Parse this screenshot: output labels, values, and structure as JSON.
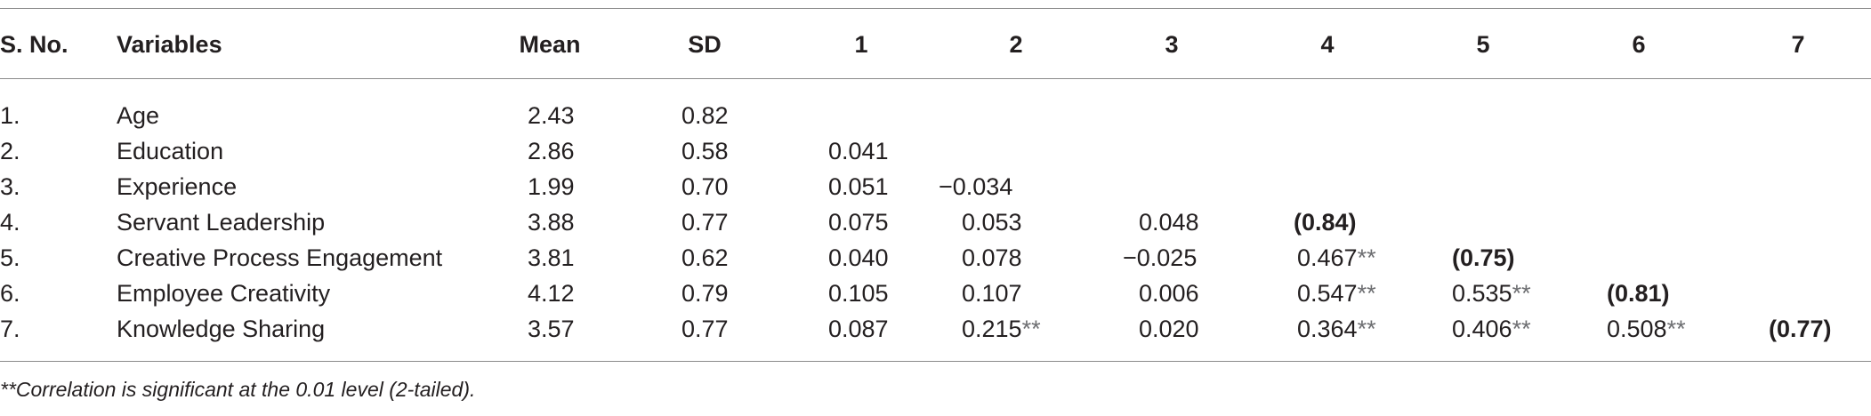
{
  "table": {
    "headers": [
      "S. No.",
      "Variables",
      "Mean",
      "SD",
      "1",
      "2",
      "3",
      "4",
      "5",
      "6",
      "7"
    ],
    "rows": [
      {
        "no": "1.",
        "variable": "Age",
        "mean": "2.43",
        "sd": "0.82",
        "c": [
          "",
          "",
          "",
          "",
          "",
          "",
          ""
        ]
      },
      {
        "no": "2.",
        "variable": "Education",
        "mean": "2.86",
        "sd": "0.58",
        "c": [
          "0.041",
          "",
          "",
          "",
          "",
          "",
          ""
        ]
      },
      {
        "no": "3.",
        "variable": "Experience",
        "mean": "1.99",
        "sd": "0.70",
        "c": [
          "0.051",
          "−0.034",
          "",
          "",
          "",
          "",
          ""
        ]
      },
      {
        "no": "4.",
        "variable": "Servant Leadership",
        "mean": "3.88",
        "sd": "0.77",
        "c": [
          "0.075",
          "0.053",
          "0.048",
          "(0.84)",
          "",
          "",
          ""
        ]
      },
      {
        "no": "5.",
        "variable": "Creative Process Engagement",
        "mean": "3.81",
        "sd": "0.62",
        "c": [
          "0.040",
          "0.078",
          "−0.025",
          "0.467**",
          "(0.75)",
          "",
          ""
        ]
      },
      {
        "no": "6.",
        "variable": "Employee Creativity",
        "mean": "4.12",
        "sd": "0.79",
        "c": [
          "0.105",
          "0.107",
          "0.006",
          "0.547**",
          "0.535**",
          "(0.81)",
          ""
        ]
      },
      {
        "no": "7.",
        "variable": "Knowledge Sharing",
        "mean": "3.57",
        "sd": "0.77",
        "c": [
          "0.087",
          "0.215**",
          "0.020",
          "0.364**",
          "0.406**",
          "0.508**",
          "(0.77)"
        ]
      }
    ]
  },
  "footnote": "**Correlation is significant at the 0.01 level (2-tailed)."
}
